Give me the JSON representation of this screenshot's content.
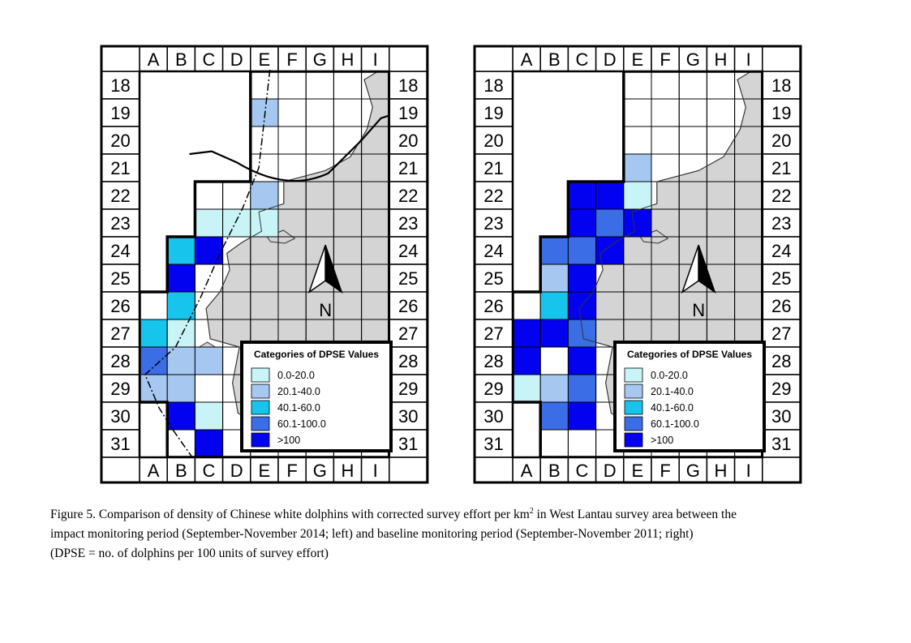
{
  "columns": [
    "A",
    "B",
    "C",
    "D",
    "E",
    "F",
    "G",
    "H",
    "I"
  ],
  "rows": [
    "18",
    "19",
    "20",
    "21",
    "22",
    "23",
    "24",
    "25",
    "26",
    "27",
    "28",
    "29",
    "30",
    "31"
  ],
  "north_label": "N",
  "legend": {
    "title": "Categories of DPSE Values",
    "categories": [
      {
        "label": "0.0-20.0",
        "color": "#c8f4f8"
      },
      {
        "label": "20.1-40.0",
        "color": "#a6c8f0"
      },
      {
        "label": "40.1-60.0",
        "color": "#17c4ec"
      },
      {
        "label": "60.1-100.0",
        "color": "#3a6de6"
      },
      {
        "label": ">100",
        "color": "#0202f0"
      }
    ]
  },
  "maps": [
    {
      "period": "impact monitoring period (September-November 2014)",
      "colored_cells": [
        {
          "col": "E",
          "row": "19",
          "cat": 1
        },
        {
          "col": "E",
          "row": "22",
          "cat": 1
        },
        {
          "col": "C",
          "row": "23",
          "cat": 0
        },
        {
          "col": "D",
          "row": "23",
          "cat": 0
        },
        {
          "col": "E",
          "row": "23",
          "cat": 0
        },
        {
          "col": "B",
          "row": "24",
          "cat": 2
        },
        {
          "col": "C",
          "row": "24",
          "cat": 4
        },
        {
          "col": "B",
          "row": "25",
          "cat": 4
        },
        {
          "col": "B",
          "row": "26",
          "cat": 2
        },
        {
          "col": "A",
          "row": "27",
          "cat": 2
        },
        {
          "col": "B",
          "row": "27",
          "cat": 0
        },
        {
          "col": "A",
          "row": "28",
          "cat": 3
        },
        {
          "col": "B",
          "row": "28",
          "cat": 1
        },
        {
          "col": "C",
          "row": "28",
          "cat": 1
        },
        {
          "col": "A",
          "row": "29",
          "cat": 1
        },
        {
          "col": "B",
          "row": "29",
          "cat": 1
        },
        {
          "col": "B",
          "row": "30",
          "cat": 4
        },
        {
          "col": "C",
          "row": "30",
          "cat": 0
        },
        {
          "col": "C",
          "row": "31",
          "cat": 4
        }
      ]
    },
    {
      "period": "baseline monitoring period (September-November 2011)",
      "colored_cells": [
        {
          "col": "E",
          "row": "21",
          "cat": 1
        },
        {
          "col": "C",
          "row": "22",
          "cat": 4
        },
        {
          "col": "D",
          "row": "22",
          "cat": 4
        },
        {
          "col": "E",
          "row": "22",
          "cat": 0
        },
        {
          "col": "C",
          "row": "23",
          "cat": 4
        },
        {
          "col": "D",
          "row": "23",
          "cat": 3
        },
        {
          "col": "E",
          "row": "23",
          "cat": 4
        },
        {
          "col": "B",
          "row": "24",
          "cat": 3
        },
        {
          "col": "C",
          "row": "24",
          "cat": 3
        },
        {
          "col": "D",
          "row": "24",
          "cat": 4
        },
        {
          "col": "B",
          "row": "25",
          "cat": 1
        },
        {
          "col": "C",
          "row": "25",
          "cat": 4
        },
        {
          "col": "B",
          "row": "26",
          "cat": 2
        },
        {
          "col": "C",
          "row": "26",
          "cat": 4
        },
        {
          "col": "A",
          "row": "27",
          "cat": 4
        },
        {
          "col": "B",
          "row": "27",
          "cat": 4
        },
        {
          "col": "C",
          "row": "27",
          "cat": 3
        },
        {
          "col": "A",
          "row": "28",
          "cat": 4
        },
        {
          "col": "C",
          "row": "28",
          "cat": 4
        },
        {
          "col": "A",
          "row": "29",
          "cat": 0
        },
        {
          "col": "B",
          "row": "29",
          "cat": 1
        },
        {
          "col": "C",
          "row": "29",
          "cat": 3
        },
        {
          "col": "B",
          "row": "30",
          "cat": 3
        },
        {
          "col": "C",
          "row": "30",
          "cat": 4
        }
      ]
    }
  ],
  "caption": {
    "line1_before_sup": "Figure 5.  Comparison of density of Chinese white dolphins with corrected survey effort per km",
    "line1_sup": "2",
    "line1_after_sup": " in West Lantau survey area between the",
    "line2": "impact monitoring period (September-November 2014; left) and baseline monitoring period (September-November 2011; right)",
    "line3": "(DPSE = no. of dolphins per 100 units of survey effort)"
  }
}
